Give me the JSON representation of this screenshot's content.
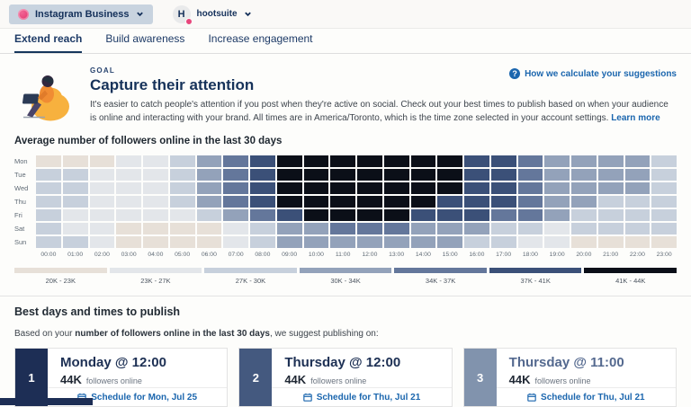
{
  "topbar": {
    "account_selector": {
      "label": "Instagram Business"
    },
    "org_selector": {
      "label": "hootsuite",
      "avatar_letter": "H"
    }
  },
  "tabs": [
    {
      "label": "Extend reach",
      "active": true
    },
    {
      "label": "Build awareness",
      "active": false
    },
    {
      "label": "Increase engagement",
      "active": false
    }
  ],
  "goal": {
    "eyebrow": "GOAL",
    "title": "Capture their attention",
    "description": "It's easier to catch people's attention if you post when they're active on social. Check out your best times to publish based on when your audience is online and interacting with your brand. All times are in America/Toronto, which is the time zone selected in your account settings.",
    "learn_more_label": "Learn more",
    "help_link_label": "How we calculate your suggestions"
  },
  "chart_data": {
    "type": "heatmap",
    "title": "Average number of followers online in the last 30 days",
    "rows": [
      "Mon",
      "Tue",
      "Wed",
      "Thu",
      "Fri",
      "Sat",
      "Sun"
    ],
    "columns": [
      "00:00",
      "01:00",
      "02:00",
      "03:00",
      "04:00",
      "05:00",
      "06:00",
      "07:00",
      "08:00",
      "09:00",
      "10:00",
      "11:00",
      "12:00",
      "13:00",
      "14:00",
      "15:00",
      "16:00",
      "17:00",
      "18:00",
      "19:00",
      "20:00",
      "21:00",
      "22:00",
      "23:00"
    ],
    "legend": [
      {
        "label": "20K - 23K",
        "color": "#e7e0d8"
      },
      {
        "label": "23K - 27K",
        "color": "#e3e6ea"
      },
      {
        "label": "27K - 30K",
        "color": "#c7d0dc"
      },
      {
        "label": "30K - 34K",
        "color": "#93a2ba"
      },
      {
        "label": "34K - 37K",
        "color": "#64779b"
      },
      {
        "label": "37K - 41K",
        "color": "#3b5078"
      },
      {
        "label": "41K - 44K",
        "color": "#0b0f18"
      }
    ],
    "values_bucket": [
      [
        1,
        1,
        1,
        2,
        2,
        3,
        4,
        5,
        6,
        7,
        7,
        7,
        7,
        7,
        7,
        7,
        6,
        6,
        5,
        4,
        4,
        4,
        4,
        3
      ],
      [
        3,
        3,
        2,
        2,
        2,
        3,
        4,
        5,
        6,
        7,
        7,
        7,
        7,
        7,
        7,
        7,
        6,
        6,
        5,
        4,
        4,
        4,
        4,
        3
      ],
      [
        3,
        3,
        2,
        2,
        2,
        3,
        4,
        5,
        6,
        7,
        7,
        7,
        7,
        7,
        7,
        7,
        6,
        6,
        5,
        4,
        4,
        4,
        4,
        3
      ],
      [
        3,
        3,
        2,
        2,
        2,
        3,
        4,
        5,
        6,
        7,
        7,
        7,
        7,
        7,
        7,
        6,
        6,
        6,
        5,
        4,
        4,
        3,
        3,
        3
      ],
      [
        3,
        2,
        2,
        2,
        2,
        2,
        3,
        4,
        5,
        6,
        7,
        7,
        7,
        7,
        6,
        6,
        6,
        5,
        5,
        4,
        3,
        3,
        3,
        3
      ],
      [
        3,
        2,
        2,
        1,
        1,
        1,
        1,
        2,
        3,
        4,
        4,
        5,
        5,
        5,
        4,
        4,
        4,
        3,
        3,
        2,
        3,
        3,
        3,
        3
      ],
      [
        3,
        3,
        2,
        1,
        1,
        1,
        1,
        2,
        3,
        4,
        4,
        4,
        4,
        4,
        4,
        4,
        3,
        3,
        2,
        2,
        1,
        1,
        1,
        1
      ]
    ]
  },
  "best": {
    "title": "Best days and times to publish",
    "subtitle_prefix": "Based on your ",
    "subtitle_bold": "number of followers online in the last 30 days",
    "subtitle_suffix": ", we suggest publishing on:",
    "cards": [
      {
        "rank": "1",
        "title": "Monday @ 12:00",
        "metric": "44K",
        "metric_label": "followers online",
        "schedule_label": "Schedule for Mon, Jul 25",
        "band_color": "#1d2e55",
        "title_color": "#1d3054"
      },
      {
        "rank": "2",
        "title": "Thursday @ 12:00",
        "metric": "44K",
        "metric_label": "followers online",
        "schedule_label": "Schedule for Thu, Jul 21",
        "band_color": "#44597f",
        "title_color": "#1d3054"
      },
      {
        "rank": "3",
        "title": "Thursday @ 11:00",
        "metric": "44K",
        "metric_label": "followers online",
        "schedule_label": "Schedule for Thu, Jul 21",
        "band_color": "#8193ad",
        "title_color": "#54698f"
      }
    ]
  },
  "colors": {
    "accent_navy": "#16325a",
    "link_blue": "#1b66ae",
    "brand_pink": "#e8467c",
    "chip_bg": "#c8d3df"
  }
}
